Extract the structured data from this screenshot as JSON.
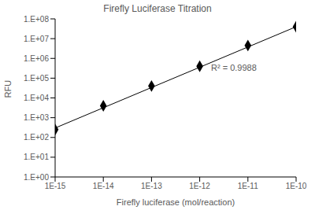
{
  "chart_data": {
    "type": "scatter",
    "title": "Firefly Luciferase Titration",
    "x_label": "Firefly luciferase (mol/reaction)",
    "y_label": "RFU",
    "log": true,
    "grid": false,
    "marker": "diamond",
    "color": "#000000",
    "x": [
      1e-15,
      1e-14,
      1e-13,
      1e-12,
      1e-11,
      1e-10
    ],
    "values": [
      250,
      4000,
      40000,
      400000,
      4500000,
      40000000
    ],
    "trendline": {
      "x": [
        1e-15,
        1e-10
      ],
      "values": [
        300,
        40000000
      ]
    },
    "annotations": [
      "R² = 0.9988"
    ],
    "xlim": [
      1e-15,
      1e-10
    ],
    "xticks": [
      {
        "value": 1e-15,
        "label": "1E-15"
      },
      {
        "value": 1e-14,
        "label": "1E-14"
      },
      {
        "value": 1e-13,
        "label": "1E-13"
      },
      {
        "value": 1e-12,
        "label": "1E-12"
      },
      {
        "value": 1e-11,
        "label": "1E-11"
      },
      {
        "value": 1e-10,
        "label": "1E-10"
      }
    ],
    "ylim": [
      1,
      100000000
    ],
    "yticks": [
      {
        "value": 1,
        "label": "1.E+00"
      },
      {
        "value": 10,
        "label": "1.E+01"
      },
      {
        "value": 100,
        "label": "1.E+02"
      },
      {
        "value": 1000,
        "label": "1.E+03"
      },
      {
        "value": 10000,
        "label": "1.E+04"
      },
      {
        "value": 100000,
        "label": "1.E+05"
      },
      {
        "value": 1000000,
        "label": "1.E+06"
      },
      {
        "value": 10000000,
        "label": "1.E+07"
      },
      {
        "value": 100000000,
        "label": "1.E+08"
      }
    ]
  }
}
